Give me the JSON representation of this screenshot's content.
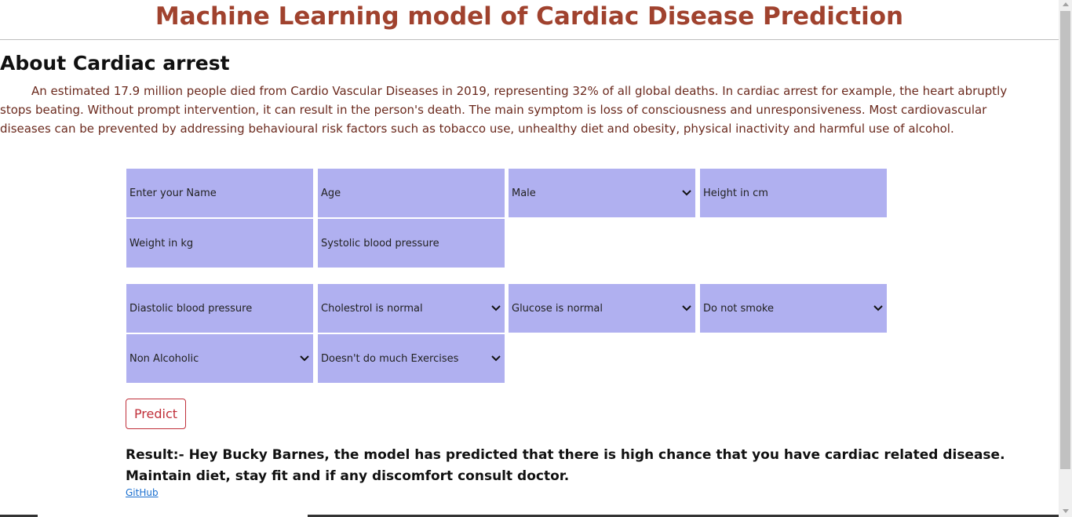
{
  "header": {
    "title": "Machine Learning model of Cardiac Disease Prediction"
  },
  "about": {
    "title": "About Cardiac arrest",
    "text": "An estimated 17.9 million people died from Cardio Vascular Diseases in 2019, representing 32% of all global deaths. In cardiac arrest for example, the heart abruptly stops beating. Without prompt intervention, it can result in the person's death. The main symptom is loss of consciousness and unresponsiveness. Most cardiovascular diseases can be prevented by addressing behavioural risk factors such as tobacco use, unhealthy diet and obesity, physical inactivity and harmful use of alcohol."
  },
  "form": {
    "name_placeholder": "Enter your Name",
    "age_placeholder": "Age",
    "gender_selected": "Male",
    "height_placeholder": "Height in cm",
    "weight_placeholder": "Weight in kg",
    "systolic_placeholder": "Systolic blood pressure",
    "diastolic_placeholder": "Diastolic blood pressure",
    "cholesterol_selected": "Cholestrol is normal",
    "glucose_selected": "Glucose is normal",
    "smoke_selected": "Do not smoke",
    "alcohol_selected": "Non Alcoholic",
    "exercise_selected": "Doesn't do much Exercises",
    "predict_label": "Predict"
  },
  "result": {
    "text": "Result:- Hey Bucky Barnes, the model has predicted that there is high chance that you have cardiac related disease. Maintain diet, stay fit and if any discomfort consult doctor."
  },
  "footer": {
    "github_label": "GitHub"
  },
  "colors": {
    "title": "#a0422e",
    "field_bg": "#b0b0f0",
    "predict_border": "#c0303a",
    "link": "#1a6fd0"
  }
}
